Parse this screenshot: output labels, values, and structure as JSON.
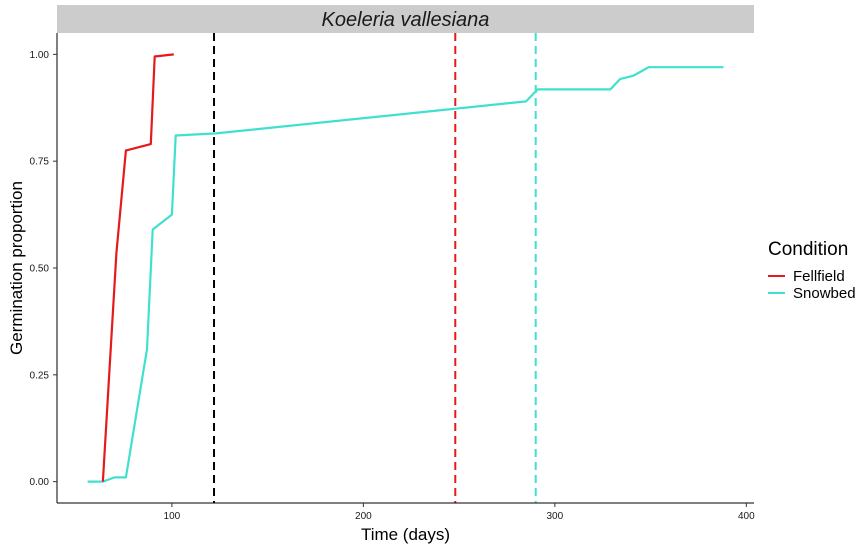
{
  "chart_data": {
    "type": "line",
    "title": "Koeleria vallesiana",
    "xlabel": "Time (days)",
    "ylabel": "Germination proportion",
    "xlim": [
      40,
      404
    ],
    "ylim": [
      -0.05,
      1.05
    ],
    "x_ticks": [
      100,
      200,
      300,
      400
    ],
    "y_ticks": [
      0.0,
      0.25,
      0.5,
      0.75,
      1.0
    ],
    "y_tick_labels": [
      "0.00",
      "0.25",
      "0.50",
      "0.75",
      "1.00"
    ],
    "grid": false,
    "legend": {
      "title": "Condition",
      "position": "right",
      "entries": [
        "Fellfield",
        "Snowbed"
      ]
    },
    "series": [
      {
        "name": "Fellfield",
        "color": "#e41a1c",
        "points": [
          [
            64,
            0.0
          ],
          [
            64,
            0.005
          ],
          [
            71,
            0.535
          ],
          [
            76,
            0.775
          ],
          [
            89,
            0.79
          ],
          [
            91,
            0.995
          ],
          [
            101,
            1.0
          ]
        ]
      },
      {
        "name": "Snowbed",
        "color": "#40e0d0",
        "points": [
          [
            56,
            0.0
          ],
          [
            64,
            0.0
          ],
          [
            70,
            0.01
          ],
          [
            76,
            0.01
          ],
          [
            87,
            0.31
          ],
          [
            90,
            0.59
          ],
          [
            100,
            0.625
          ],
          [
            102,
            0.81
          ],
          [
            123,
            0.815
          ],
          [
            285,
            0.89
          ],
          [
            291,
            0.918
          ],
          [
            329,
            0.918
          ],
          [
            334,
            0.942
          ],
          [
            341,
            0.95
          ],
          [
            349,
            0.97
          ],
          [
            388,
            0.97
          ]
        ]
      }
    ],
    "vlines": [
      {
        "x": 122,
        "color": "#000000",
        "style": "dashed"
      },
      {
        "x": 248,
        "color": "#e41a1c",
        "style": "dashed"
      },
      {
        "x": 290,
        "color": "#40e0d0",
        "style": "dashed"
      }
    ],
    "strip_color": "#cccccc"
  }
}
